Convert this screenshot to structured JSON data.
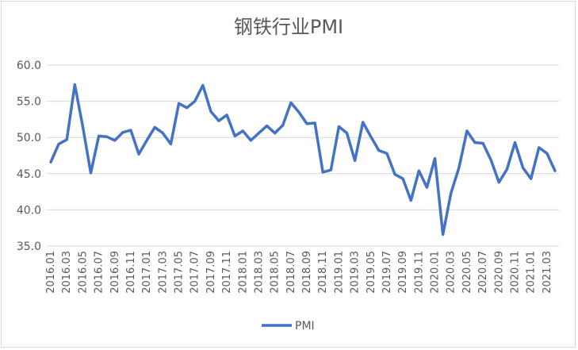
{
  "chart_data": {
    "type": "line",
    "title": "钢铁行业PMI",
    "xlabel": "",
    "ylabel": "",
    "ylim": [
      35,
      60
    ],
    "yticks": [
      "35.0",
      "40.0",
      "45.0",
      "50.0",
      "55.0",
      "60.0"
    ],
    "grid": true,
    "legend": "bottom",
    "x": [
      "2016.01",
      "2016.02",
      "2016.03",
      "2016.04",
      "2016.05",
      "2016.06",
      "2016.07",
      "2016.08",
      "2016.09",
      "2016.10",
      "2016.11",
      "2016.12",
      "2017.01",
      "2017.02",
      "2017.03",
      "2017.04",
      "2017.05",
      "2017.06",
      "2017.07",
      "2017.08",
      "2017.09",
      "2017.10",
      "2017.11",
      "2017.12",
      "2018.01",
      "2018.02",
      "2018.03",
      "2018.04",
      "2018.05",
      "2018.06",
      "2018.07",
      "2018.08",
      "2018.09",
      "2018.10",
      "2018.11",
      "2018.12",
      "2019.01",
      "2019.02",
      "2019.03",
      "2019.04",
      "2019.05",
      "2019.06",
      "2019.07",
      "2019.08",
      "2019.09",
      "2019.10",
      "2019.11",
      "2019.12",
      "2020.01",
      "2020.02",
      "2020.03",
      "2020.04",
      "2020.05",
      "2020.06",
      "2020.07",
      "2020.08",
      "2020.09",
      "2020.10",
      "2020.11",
      "2020.12",
      "2021.01",
      "2021.02",
      "2021.03",
      "2021.04"
    ],
    "xtick_labels": [
      "2016.01",
      "2016.03",
      "2016.05",
      "2016.07",
      "2016.09",
      "2016.11",
      "2017.01",
      "2017.03",
      "2017.05",
      "2017.07",
      "2017.09",
      "2017.11",
      "2018.01",
      "2018.03",
      "2018.05",
      "2018.07",
      "2018.09",
      "2018.11",
      "2019.01",
      "2019.03",
      "2019.05",
      "2019.07",
      "2019.09",
      "2019.11",
      "2020.01",
      "2020.03",
      "2020.05",
      "2020.07",
      "2020.09",
      "2020.11",
      "2021.01",
      "2021.03"
    ],
    "series": [
      {
        "name": "PMI",
        "color": "#4472c4",
        "values": [
          46.6,
          49.1,
          49.7,
          57.3,
          51.5,
          45.1,
          50.2,
          50.1,
          49.6,
          50.7,
          51.0,
          47.7,
          49.6,
          51.4,
          50.6,
          49.1,
          54.7,
          54.1,
          55.0,
          57.2,
          53.6,
          52.3,
          53.1,
          50.2,
          50.9,
          49.6,
          50.6,
          51.6,
          50.6,
          51.7,
          54.8,
          53.5,
          51.9,
          52.0,
          45.2,
          45.5,
          51.5,
          50.6,
          46.8,
          52.1,
          50.1,
          48.2,
          47.8,
          44.9,
          44.3,
          41.3,
          45.4,
          43.1,
          47.1,
          36.6,
          42.3,
          45.8,
          50.9,
          49.3,
          49.2,
          46.9,
          43.8,
          45.6,
          49.3,
          45.8,
          44.3,
          48.6,
          47.8,
          45.4
        ]
      }
    ]
  }
}
